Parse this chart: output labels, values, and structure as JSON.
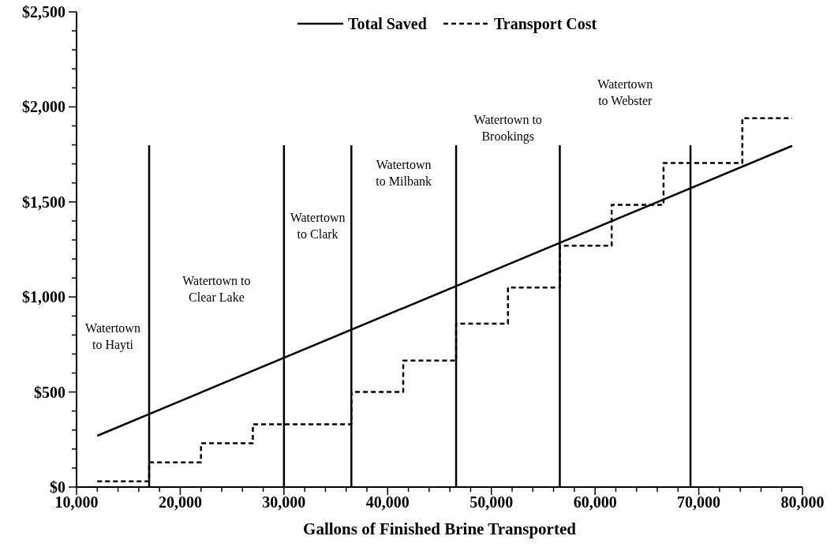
{
  "chart_data": {
    "type": "line",
    "xlabel": "Gallons of Finished Brine Transported",
    "xlim": [
      10000,
      80000
    ],
    "xticks": [
      {
        "value": 10000,
        "label": "10,000"
      },
      {
        "value": 12000,
        "label": null
      },
      {
        "value": 14000,
        "label": null
      },
      {
        "value": 16000,
        "label": null
      },
      {
        "value": 18000,
        "label": null
      },
      {
        "value": 20000,
        "label": "20,000"
      },
      {
        "value": 22000,
        "label": null
      },
      {
        "value": 24000,
        "label": null
      },
      {
        "value": 26000,
        "label": null
      },
      {
        "value": 28000,
        "label": null
      },
      {
        "value": 30000,
        "label": "30,000"
      },
      {
        "value": 32000,
        "label": null
      },
      {
        "value": 34000,
        "label": null
      },
      {
        "value": 36000,
        "label": null
      },
      {
        "value": 38000,
        "label": null
      },
      {
        "value": 40000,
        "label": "40,000"
      },
      {
        "value": 42000,
        "label": null
      },
      {
        "value": 44000,
        "label": null
      },
      {
        "value": 46000,
        "label": null
      },
      {
        "value": 48000,
        "label": null
      },
      {
        "value": 50000,
        "label": "50,000"
      },
      {
        "value": 52000,
        "label": null
      },
      {
        "value": 54000,
        "label": null
      },
      {
        "value": 56000,
        "label": null
      },
      {
        "value": 58000,
        "label": null
      },
      {
        "value": 60000,
        "label": "60,000"
      },
      {
        "value": 62000,
        "label": null
      },
      {
        "value": 64000,
        "label": null
      },
      {
        "value": 66000,
        "label": null
      },
      {
        "value": 68000,
        "label": null
      },
      {
        "value": 70000,
        "label": "70,000"
      },
      {
        "value": 72000,
        "label": null
      },
      {
        "value": 74000,
        "label": null
      },
      {
        "value": 76000,
        "label": null
      },
      {
        "value": 78000,
        "label": null
      },
      {
        "value": 80000,
        "label": "80,000"
      }
    ],
    "ylim": [
      0,
      2500
    ],
    "yticks": [
      {
        "value": 0,
        "label": "$0"
      },
      {
        "value": 100,
        "label": null
      },
      {
        "value": 200,
        "label": null
      },
      {
        "value": 300,
        "label": null
      },
      {
        "value": 400,
        "label": null
      },
      {
        "value": 500,
        "label": "$500"
      },
      {
        "value": 600,
        "label": null
      },
      {
        "value": 700,
        "label": null
      },
      {
        "value": 800,
        "label": null
      },
      {
        "value": 900,
        "label": null
      },
      {
        "value": 1000,
        "label": "$1,000"
      },
      {
        "value": 1100,
        "label": null
      },
      {
        "value": 1200,
        "label": null
      },
      {
        "value": 1300,
        "label": null
      },
      {
        "value": 1400,
        "label": null
      },
      {
        "value": 1500,
        "label": "$1,500"
      },
      {
        "value": 1600,
        "label": null
      },
      {
        "value": 1700,
        "label": null
      },
      {
        "value": 1800,
        "label": null
      },
      {
        "value": 1900,
        "label": null
      },
      {
        "value": 2000,
        "label": "$2,000"
      },
      {
        "value": 2100,
        "label": null
      },
      {
        "value": 2200,
        "label": null
      },
      {
        "value": 2300,
        "label": null
      },
      {
        "value": 2400,
        "label": null
      },
      {
        "value": 2500,
        "label": "$2,500"
      }
    ],
    "grid": false,
    "legend": "top",
    "series": [
      {
        "name": "Total Saved",
        "color": "#000000",
        "line_style": "solid",
        "x": [
          12000,
          79000
        ],
        "values": [
          270,
          1795
        ]
      },
      {
        "name": "Transport Cost",
        "type": "step",
        "color": "#000000",
        "line_style": "dashed",
        "x": [
          12000,
          17000,
          22000,
          27000,
          36500,
          41500,
          46600,
          51600,
          56600,
          61600,
          66600,
          74200,
          79000
        ],
        "values": [
          30,
          130,
          230,
          330,
          500,
          665,
          860,
          1050,
          1270,
          1485,
          1705,
          1940,
          1940
        ]
      }
    ],
    "ref_lines": [
      {
        "axis": "x",
        "value": 17000,
        "color": "#000000",
        "line_style": "solid"
      },
      {
        "axis": "x",
        "value": 30000,
        "color": "#000000",
        "line_style": "solid"
      },
      {
        "axis": "x",
        "value": 36500,
        "color": "#000000",
        "line_style": "solid"
      },
      {
        "axis": "x",
        "value": 46600,
        "color": "#000000",
        "line_style": "solid"
      },
      {
        "axis": "x",
        "value": 56600,
        "color": "#000000",
        "line_style": "solid"
      },
      {
        "axis": "x",
        "value": 69200,
        "color": "#000000",
        "line_style": "solid"
      }
    ],
    "annotations": [
      "Watertown\nto Hayti",
      "Watertown to\nClear Lake",
      "Watertown\nto Clark",
      "Watertown\nto Milbank",
      "Watertown to\nBrookings",
      "Watertown\nto Webster"
    ]
  }
}
